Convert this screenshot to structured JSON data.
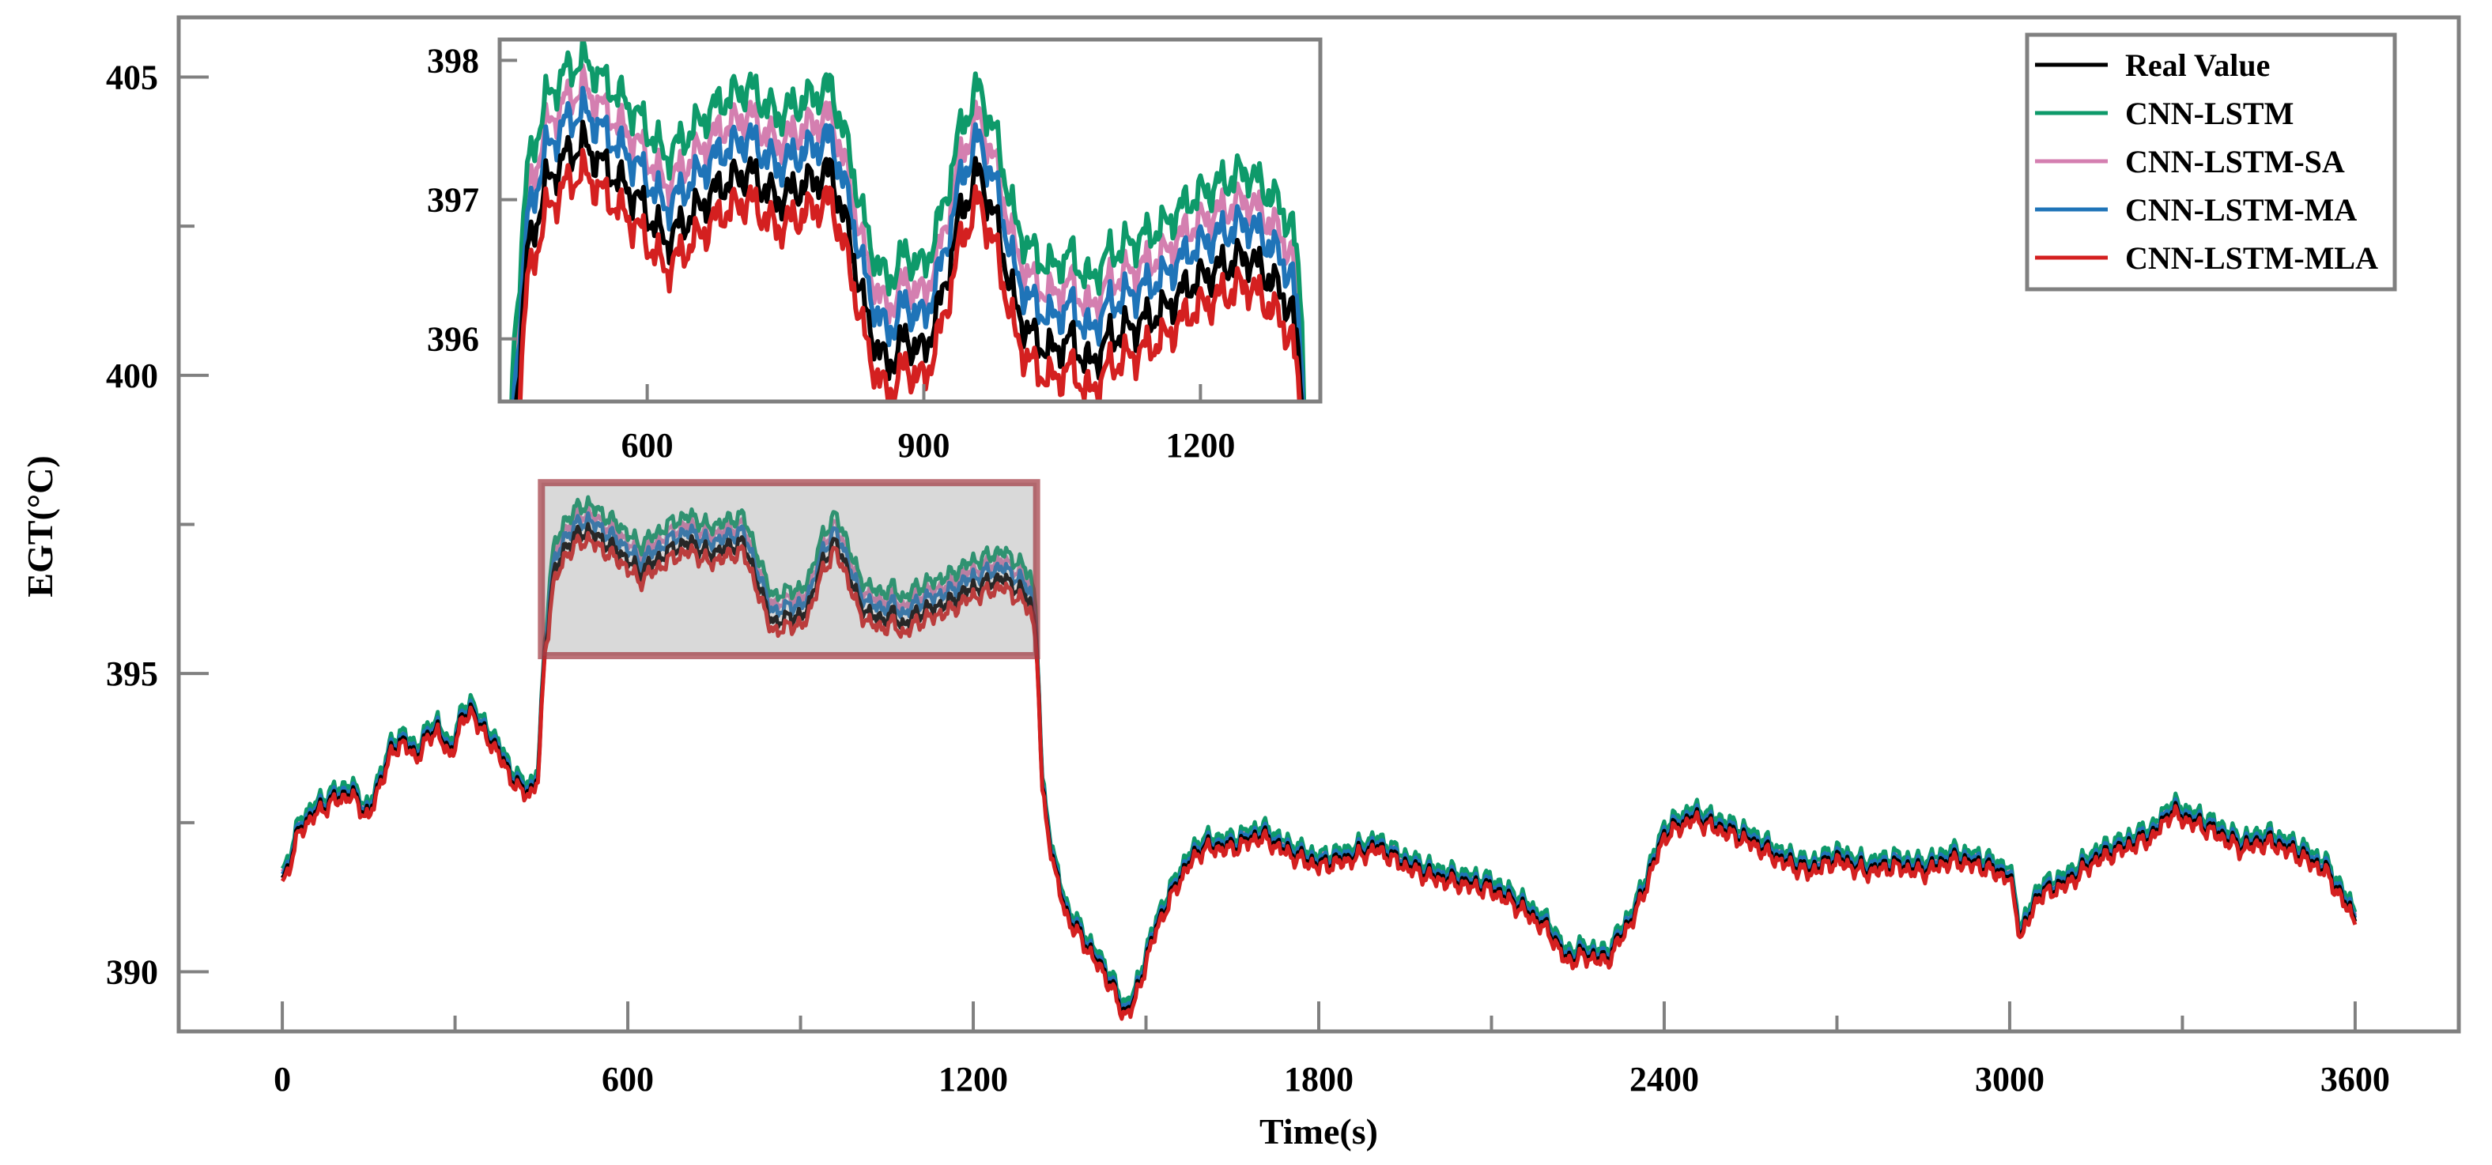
{
  "chart_data": {
    "type": "line",
    "title": "",
    "xlabel": "Time(s)",
    "ylabel": "EGT(°C)",
    "xlim": [
      -180,
      3780
    ],
    "ylim": [
      389,
      406
    ],
    "xticks": [
      "0",
      "600",
      "1200",
      "1800",
      "2400",
      "3000",
      "3600"
    ],
    "yticks": [
      "390",
      "395",
      "400",
      "405"
    ],
    "grid": false,
    "legend_position": "top-right",
    "series": [
      {
        "name": "Real Value",
        "color": "#000000",
        "offset": 0
      },
      {
        "name": "CNN-LSTM",
        "color": "#0e9a6a",
        "offset": 0.45
      },
      {
        "name": "CNN-LSTM-SA",
        "color": "#d47fb0",
        "offset": 0.3
      },
      {
        "name": "CNN-LSTM-MA",
        "color": "#1f74b8",
        "offset": 0.18
      },
      {
        "name": "CNN-LSTM-MLA",
        "color": "#d42020",
        "offset": -0.15
      }
    ],
    "base_curve": {
      "x": [
        0,
        15,
        30,
        60,
        90,
        120,
        150,
        170,
        190,
        210,
        230,
        250,
        270,
        290,
        310,
        330,
        350,
        370,
        390,
        410,
        430,
        445,
        455,
        470,
        490,
        510,
        530,
        560,
        590,
        620,
        650,
        680,
        710,
        740,
        770,
        800,
        820,
        840,
        860,
        880,
        900,
        920,
        940,
        960,
        980,
        1000,
        1020,
        1040,
        1060,
        1080,
        1100,
        1130,
        1160,
        1190,
        1220,
        1250,
        1280,
        1300,
        1310,
        1320,
        1340,
        1360,
        1380,
        1400,
        1420,
        1440,
        1460,
        1480,
        1500,
        1520,
        1540,
        1560,
        1580,
        1600,
        1650,
        1700,
        1750,
        1800,
        1850,
        1900,
        1950,
        2000,
        2050,
        2100,
        2150,
        2200,
        2230,
        2260,
        2300,
        2350,
        2400,
        2450,
        2500,
        2550,
        2600,
        2650,
        2700,
        2750,
        2800,
        2850,
        2900,
        2950,
        3000,
        3020,
        3050,
        3100,
        3150,
        3200,
        3250,
        3280,
        3300,
        3350,
        3400,
        3450,
        3500,
        3550,
        3580,
        3600
      ],
      "y": [
        391.5,
        391.9,
        392.4,
        392.7,
        392.9,
        393.0,
        392.6,
        393.2,
        393.7,
        393.9,
        393.6,
        393.9,
        394.1,
        393.6,
        394.2,
        394.4,
        394.0,
        393.8,
        393.4,
        393.1,
        393.0,
        393.3,
        395.3,
        396.6,
        397.1,
        397.3,
        397.4,
        397.2,
        397.0,
        396.7,
        396.9,
        397.1,
        397.2,
        397.0,
        397.1,
        397.2,
        396.7,
        396.1,
        395.8,
        396.0,
        395.9,
        396.3,
        396.9,
        397.2,
        396.8,
        396.2,
        396.0,
        395.9,
        396.0,
        395.8,
        396.0,
        396.1,
        396.2,
        396.4,
        396.5,
        396.6,
        396.4,
        396.2,
        395.6,
        393.0,
        391.8,
        391.0,
        390.7,
        390.4,
        390.1,
        389.8,
        389.3,
        389.5,
        390.2,
        390.8,
        391.2,
        391.6,
        391.9,
        392.1,
        392.1,
        392.3,
        392.0,
        391.8,
        391.9,
        392.1,
        391.8,
        391.6,
        391.5,
        391.4,
        391.1,
        390.7,
        390.2,
        390.3,
        390.2,
        391.0,
        392.3,
        392.6,
        392.4,
        392.2,
        391.9,
        391.7,
        391.9,
        391.7,
        391.8,
        391.7,
        391.9,
        391.8,
        391.6,
        390.6,
        391.3,
        391.5,
        391.9,
        392.1,
        392.3,
        392.7,
        392.6,
        392.4,
        392.1,
        392.2,
        392.0,
        391.7,
        391.2,
        390.9
      ]
    },
    "inset": {
      "xlim": [
        440,
        1330
      ],
      "ylim": [
        395.55,
        398.15
      ],
      "xticks": [
        "600",
        "900",
        "1200"
      ],
      "yticks": [
        "396",
        "397",
        "398"
      ],
      "source_xlim": [
        450,
        1310
      ],
      "source_ylim": [
        395.3,
        398.2
      ]
    }
  }
}
